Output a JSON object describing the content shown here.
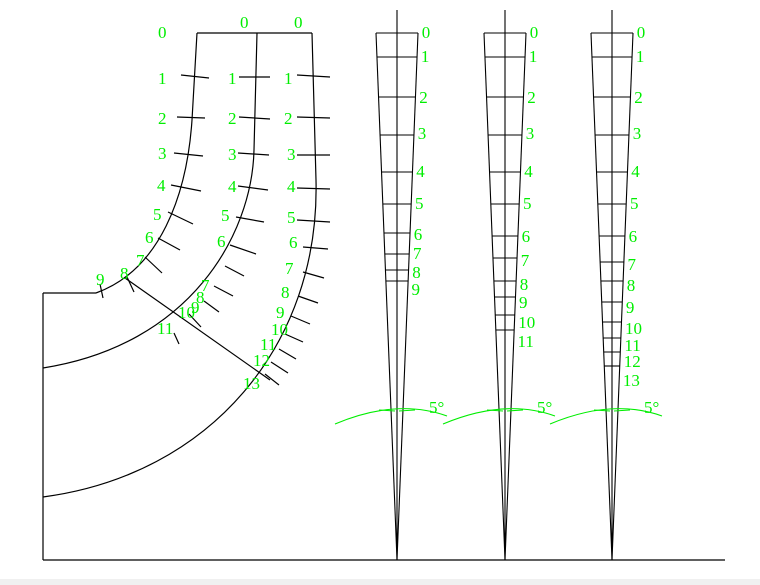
{
  "colors": {
    "line": "#000000",
    "label": "#00ee00",
    "background": "#ffffff"
  },
  "elbow": {
    "column_a_labels": [
      "0",
      "1",
      "2",
      "3",
      "4",
      "5",
      "6",
      "7",
      "8",
      "9"
    ],
    "column_a_ext_labels": [
      "11"
    ],
    "column_b_labels": [
      "0",
      "1",
      "2",
      "3",
      "4",
      "5",
      "6",
      "7",
      "8",
      "9",
      "10"
    ],
    "column_c_labels": [
      "0",
      "1",
      "2",
      "3",
      "4",
      "5",
      "6",
      "7",
      "8",
      "9",
      "10",
      "11",
      "12",
      "13"
    ]
  },
  "wedges": [
    {
      "labels": [
        "0",
        "1",
        "2",
        "3",
        "4",
        "5",
        "6",
        "7",
        "8",
        "9"
      ],
      "angle_label": "5°"
    },
    {
      "labels": [
        "0",
        "1",
        "2",
        "3",
        "4",
        "5",
        "6",
        "7",
        "8",
        "9",
        "10",
        "11"
      ],
      "angle_label": "5°"
    },
    {
      "labels": [
        "0",
        "1",
        "2",
        "3",
        "4",
        "5",
        "6",
        "7",
        "8",
        "9",
        "10",
        "11",
        "12",
        "13"
      ],
      "angle_label": "5°"
    }
  ]
}
